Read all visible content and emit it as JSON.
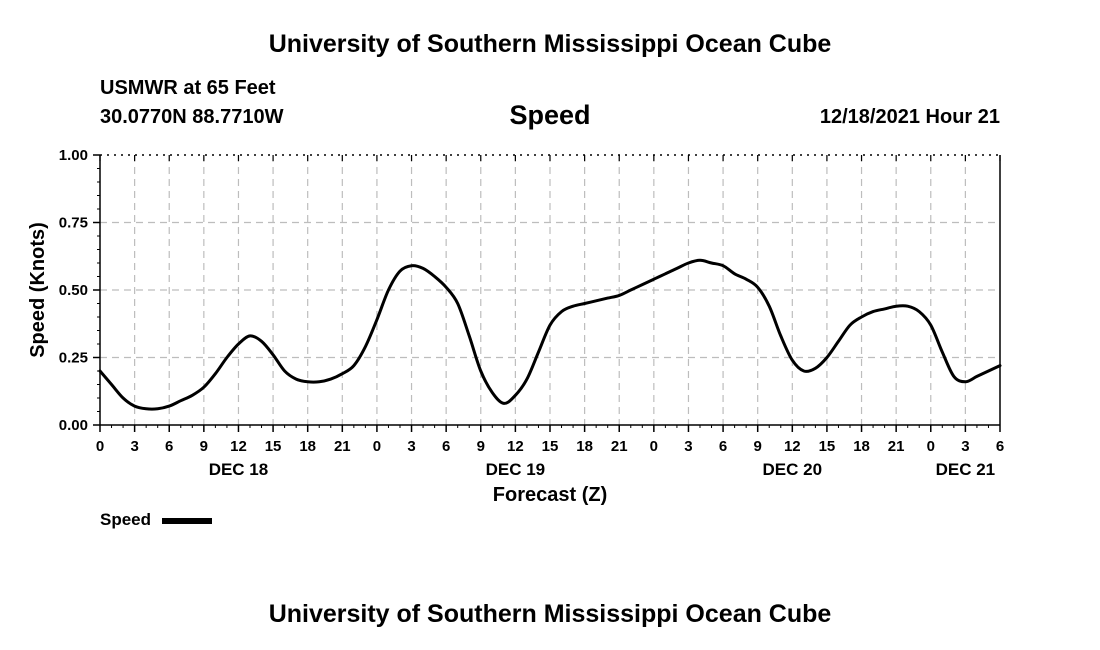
{
  "page": {
    "title_top": "University of Southern Mississippi Ocean Cube",
    "title_bottom": "University of Southern Mississippi Ocean Cube",
    "station": "USMWR at 65 Feet",
    "coords": "30.0770N  88.7710W",
    "plot_title": "Speed",
    "timestamp": "12/18/2021 Hour 21"
  },
  "chart_data": {
    "type": "line",
    "title": "Speed",
    "xlabel": "Forecast (Z)",
    "ylabel": "Speed (Knots)",
    "xlim": [
      0,
      78
    ],
    "ylim": [
      0,
      1
    ],
    "grid": true,
    "x_ticks": [
      0,
      3,
      6,
      9,
      12,
      15,
      18,
      21,
      24,
      27,
      30,
      33,
      36,
      39,
      42,
      45,
      48,
      51,
      54,
      57,
      60,
      63,
      66,
      69,
      72,
      75,
      78
    ],
    "x_tick_labels": [
      "0",
      "3",
      "6",
      "9",
      "12",
      "15",
      "18",
      "21",
      "0",
      "3",
      "6",
      "9",
      "12",
      "15",
      "18",
      "21",
      "0",
      "3",
      "6",
      "9",
      "12",
      "15",
      "18",
      "21",
      "0",
      "3",
      "6"
    ],
    "y_ticks": [
      0,
      0.25,
      0.5,
      0.75,
      1.0
    ],
    "y_tick_labels": [
      "0.00",
      "0.25",
      "0.50",
      "0.75",
      "1.00"
    ],
    "date_labels": [
      {
        "x": 12,
        "label": "DEC 18"
      },
      {
        "x": 36,
        "label": "DEC 19"
      },
      {
        "x": 60,
        "label": "DEC 20"
      },
      {
        "x": 75,
        "label": "DEC 21"
      }
    ],
    "legend": [
      {
        "name": "Speed",
        "placement": "bottom-left"
      }
    ],
    "series": [
      {
        "name": "Speed",
        "x": [
          0,
          1,
          2,
          3,
          4,
          5,
          6,
          7,
          8,
          9,
          10,
          11,
          12,
          13,
          14,
          15,
          16,
          17,
          18,
          19,
          20,
          21,
          22,
          23,
          24,
          25,
          26,
          27,
          28,
          29,
          30,
          31,
          32,
          33,
          34,
          35,
          36,
          37,
          38,
          39,
          40,
          41,
          42,
          43,
          44,
          45,
          46,
          47,
          48,
          49,
          50,
          51,
          52,
          53,
          54,
          55,
          56,
          57,
          58,
          59,
          60,
          61,
          62,
          63,
          64,
          65,
          66,
          67,
          68,
          69,
          70,
          71,
          72,
          73,
          74,
          75,
          76,
          77,
          78
        ],
        "values": [
          0.2,
          0.15,
          0.1,
          0.07,
          0.06,
          0.06,
          0.07,
          0.09,
          0.11,
          0.14,
          0.19,
          0.25,
          0.3,
          0.33,
          0.31,
          0.26,
          0.2,
          0.17,
          0.16,
          0.16,
          0.17,
          0.19,
          0.22,
          0.29,
          0.39,
          0.5,
          0.57,
          0.59,
          0.58,
          0.55,
          0.51,
          0.45,
          0.33,
          0.2,
          0.12,
          0.08,
          0.11,
          0.17,
          0.27,
          0.37,
          0.42,
          0.44,
          0.45,
          0.46,
          0.47,
          0.48,
          0.5,
          0.52,
          0.54,
          0.56,
          0.58,
          0.6,
          0.61,
          0.6,
          0.59,
          0.56,
          0.54,
          0.51,
          0.44,
          0.33,
          0.24,
          0.2,
          0.21,
          0.25,
          0.31,
          0.37,
          0.4,
          0.42,
          0.43,
          0.44,
          0.44,
          0.42,
          0.37,
          0.27,
          0.18,
          0.16,
          0.18,
          0.2,
          0.22
        ]
      }
    ]
  }
}
